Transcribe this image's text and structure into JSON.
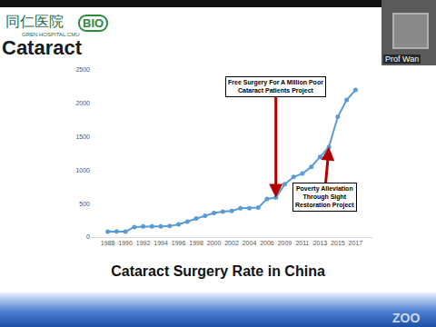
{
  "slide": {
    "heading": "Cataract",
    "logo_text": "同仁医院",
    "logo_subtext": "GREN HOSPITAL.CMU",
    "logo_badge": "BIO",
    "participant": "Prof Wan",
    "watermark": "ZOO"
  },
  "chart_data": {
    "type": "line",
    "title": "Cataract Surgery Rate in China",
    "categories": [
      "1988",
      null,
      "1990",
      null,
      "1992",
      null,
      "1994",
      null,
      "1996",
      null,
      "1998",
      null,
      "2000",
      null,
      "2002",
      null,
      "2004",
      null,
      "2006",
      null,
      "2009",
      null,
      "2011",
      null,
      "2013",
      null,
      "2015",
      null,
      "2017"
    ],
    "values": [
      80,
      85,
      80,
      150,
      160,
      160,
      160,
      165,
      190,
      230,
      280,
      320,
      360,
      380,
      390,
      430,
      430,
      440,
      570,
      590,
      790,
      900,
      950,
      1050,
      1200,
      1350,
      1800,
      2050,
      2200
    ],
    "color": "#5b9bd5",
    "marker": "circle",
    "line_style": "solid",
    "ylim": [
      0,
      2500
    ],
    "yticks": [
      0,
      500,
      1000,
      1500,
      2000,
      2500
    ],
    "grid": false,
    "annotations": [
      {
        "text_lines": [
          "Free Surgery For A Million Poor",
          "Cataract Patients Project"
        ],
        "x_index": 19
      },
      {
        "text_lines": [
          "Poverty Alleviation",
          "Through Sight",
          "Restoration Project"
        ],
        "x_index": 25
      }
    ]
  }
}
